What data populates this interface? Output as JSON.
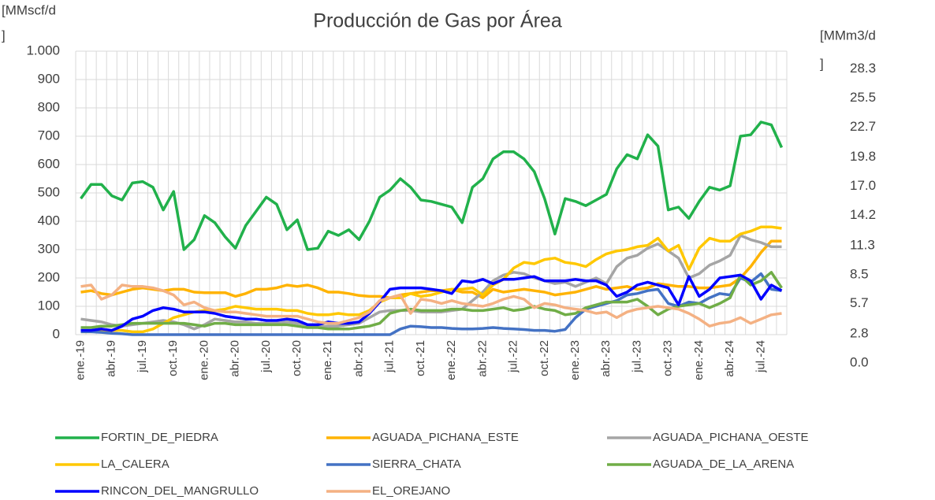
{
  "chart_data": {
    "type": "line",
    "title": "Producción de Gas por Área",
    "y_label": [
      "[MMscf/d",
      "]"
    ],
    "y2_label": [
      "[MMm3/d",
      "]"
    ],
    "categories": [
      "ene.-19",
      null,
      null,
      "abr.-19",
      null,
      null,
      "jul.-19",
      null,
      null,
      "oct.-19",
      null,
      null,
      "ene.-20",
      null,
      null,
      "abr.-20",
      null,
      null,
      "jul.-20",
      null,
      null,
      "oct.-20",
      null,
      null,
      "ene.-21",
      null,
      null,
      "abr.-21",
      null,
      null,
      "jul.-21",
      null,
      null,
      "oct.-21",
      null,
      null,
      "ene.-22",
      null,
      null,
      "abr.-22",
      null,
      null,
      "jul.-22",
      null,
      null,
      "oct.-22",
      null,
      null,
      "ene.-23",
      null,
      null,
      "abr.-23",
      null,
      null,
      "jul.-23",
      null,
      null,
      "oct.-23",
      null,
      null,
      "ene.-24",
      null,
      null,
      "abr.-24",
      null,
      null,
      "jul.-24",
      null,
      null
    ],
    "ylim": [
      0,
      1000
    ],
    "yticks": [
      0,
      100,
      200,
      300,
      400,
      500,
      600,
      700,
      800,
      900,
      {
        "value": 1000,
        "label": "1.000"
      }
    ],
    "y2lim": [
      0.0,
      30.0
    ],
    "y2ticks": [
      {
        "value": 0,
        "label": "0.0"
      },
      2.8,
      5.7,
      8.5,
      11.3,
      14.2,
      {
        "value": 17,
        "label": "17.0"
      },
      19.8,
      22.7,
      25.5,
      28.3
    ],
    "grid": true,
    "legend": "bottom",
    "series": [
      {
        "name": "FORTIN_DE_PIEDRA",
        "color": "#21b14b",
        "values": [
          480,
          530,
          530,
          490,
          475,
          535,
          540,
          520,
          440,
          505,
          300,
          335,
          420,
          395,
          345,
          305,
          385,
          435,
          485,
          460,
          370,
          405,
          300,
          305,
          365,
          350,
          370,
          335,
          400,
          485,
          510,
          550,
          520,
          475,
          470,
          460,
          450,
          395,
          520,
          550,
          620,
          645,
          645,
          620,
          575,
          480,
          355,
          480,
          470,
          455,
          475,
          495,
          585,
          635,
          620,
          705,
          665,
          440,
          450,
          410,
          470,
          520,
          510,
          525,
          700,
          705,
          750,
          740,
          660
        ]
      },
      {
        "name": "AGUADA_PICHANA_ESTE",
        "color": "#ffb300",
        "values": [
          150,
          155,
          145,
          140,
          150,
          160,
          165,
          160,
          155,
          160,
          160,
          150,
          148,
          148,
          148,
          135,
          145,
          160,
          160,
          165,
          175,
          170,
          175,
          165,
          150,
          150,
          145,
          138,
          135,
          135,
          130,
          140,
          145,
          150,
          155,
          155,
          160,
          150,
          150,
          130,
          160,
          150,
          155,
          160,
          155,
          150,
          140,
          145,
          150,
          160,
          170,
          160,
          165,
          170,
          160,
          165,
          180,
          175,
          170,
          170,
          165,
          165,
          170,
          175,
          200,
          240,
          290,
          330,
          330
        ]
      },
      {
        "name": "AGUADA_PICHANA_OESTE",
        "color": "#a5a5a5",
        "values": [
          55,
          50,
          45,
          35,
          30,
          35,
          40,
          45,
          50,
          45,
          35,
          20,
          35,
          55,
          50,
          45,
          45,
          40,
          40,
          40,
          45,
          40,
          35,
          30,
          30,
          30,
          35,
          40,
          60,
          80,
          85,
          85,
          85,
          80,
          80,
          80,
          85,
          90,
          120,
          150,
          190,
          210,
          220,
          215,
          200,
          190,
          180,
          185,
          170,
          185,
          200,
          180,
          240,
          270,
          280,
          305,
          320,
          295,
          270,
          200,
          215,
          245,
          260,
          280,
          350,
          335,
          325,
          310,
          310
        ]
      },
      {
        "name": "LA_CALERA",
        "color": "#ffc800",
        "values": [
          10,
          10,
          12,
          15,
          15,
          10,
          10,
          20,
          40,
          60,
          70,
          80,
          85,
          85,
          90,
          100,
          95,
          90,
          90,
          90,
          85,
          85,
          75,
          70,
          70,
          75,
          70,
          70,
          85,
          115,
          130,
          130,
          145,
          135,
          140,
          150,
          160,
          160,
          165,
          140,
          175,
          195,
          235,
          255,
          250,
          265,
          270,
          255,
          250,
          240,
          265,
          285,
          295,
          300,
          310,
          315,
          340,
          295,
          315,
          230,
          305,
          340,
          330,
          330,
          355,
          365,
          380,
          380,
          375
        ]
      },
      {
        "name": "SIERRA_CHATA",
        "color": "#4472c4",
        "values": [
          10,
          10,
          8,
          5,
          3,
          0,
          0,
          0,
          0,
          0,
          0,
          0,
          0,
          0,
          0,
          0,
          0,
          0,
          0,
          0,
          0,
          0,
          0,
          0,
          0,
          0,
          0,
          0,
          0,
          0,
          0,
          20,
          30,
          28,
          25,
          25,
          22,
          20,
          20,
          22,
          25,
          22,
          20,
          18,
          15,
          15,
          12,
          18,
          60,
          90,
          100,
          110,
          120,
          140,
          145,
          155,
          160,
          110,
          100,
          115,
          110,
          130,
          145,
          140,
          200,
          185,
          215,
          160,
          155
        ]
      },
      {
        "name": "AGUADA_DE_LA_ARENA",
        "color": "#70ad47",
        "values": [
          25,
          25,
          30,
          30,
          35,
          40,
          40,
          40,
          40,
          40,
          40,
          35,
          30,
          40,
          40,
          35,
          35,
          35,
          35,
          35,
          35,
          30,
          25,
          25,
          20,
          20,
          20,
          25,
          30,
          40,
          75,
          85,
          90,
          85,
          85,
          85,
          90,
          90,
          85,
          85,
          90,
          95,
          85,
          90,
          100,
          90,
          85,
          70,
          75,
          95,
          105,
          115,
          115,
          115,
          125,
          100,
          70,
          90,
          100,
          105,
          110,
          95,
          110,
          130,
          210,
          175,
          190,
          220,
          165
        ]
      },
      {
        "name": "RINCON_DEL_MANGRULLO",
        "color": "#0000ff",
        "values": [
          15,
          15,
          20,
          15,
          30,
          55,
          65,
          85,
          95,
          90,
          80,
          80,
          80,
          75,
          65,
          60,
          55,
          55,
          50,
          50,
          55,
          50,
          35,
          35,
          45,
          40,
          40,
          45,
          75,
          115,
          160,
          165,
          165,
          165,
          160,
          155,
          145,
          190,
          185,
          195,
          180,
          195,
          195,
          200,
          205,
          190,
          190,
          190,
          195,
          190,
          190,
          175,
          135,
          150,
          175,
          185,
          175,
          165,
          105,
          205,
          135,
          160,
          200,
          205,
          210,
          190,
          125,
          175,
          155
        ]
      },
      {
        "name": "EL_OREJANO",
        "color": "#f4b183",
        "values": [
          170,
          175,
          125,
          140,
          175,
          170,
          170,
          165,
          155,
          140,
          105,
          115,
          95,
          85,
          80,
          80,
          75,
          70,
          65,
          65,
          65,
          65,
          55,
          45,
          40,
          40,
          50,
          60,
          80,
          120,
          130,
          140,
          75,
          125,
          120,
          110,
          120,
          110,
          105,
          100,
          110,
          125,
          135,
          125,
          95,
          110,
          105,
          95,
          90,
          85,
          75,
          80,
          60,
          80,
          90,
          95,
          100,
          95,
          90,
          75,
          55,
          30,
          40,
          45,
          60,
          40,
          55,
          70,
          75
        ]
      }
    ]
  }
}
